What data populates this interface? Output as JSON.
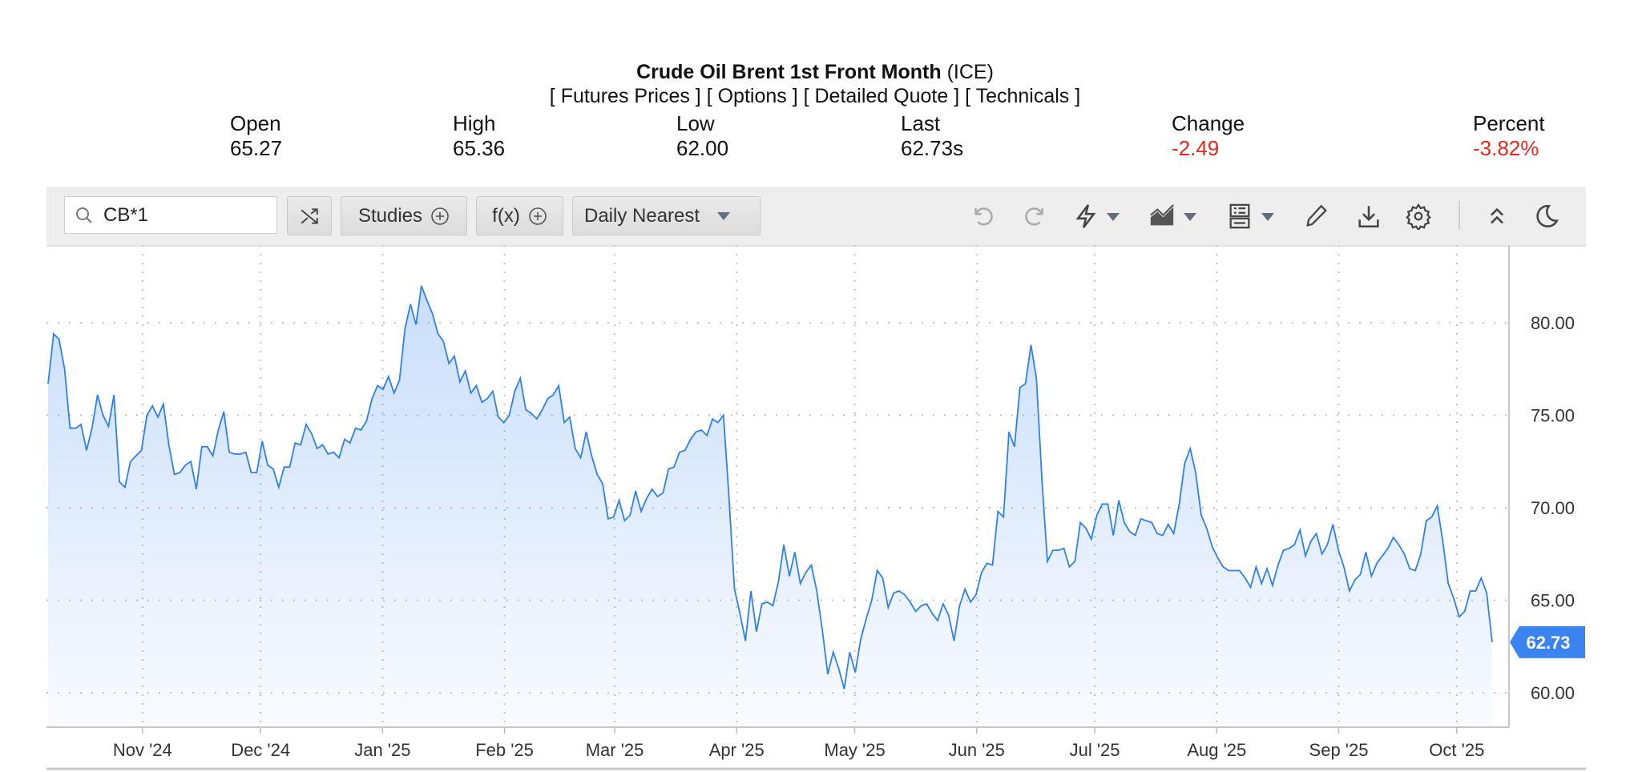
{
  "header": {
    "title": "Crude Oil Brent 1st Front Month",
    "exchange": "(ICE)",
    "links": [
      "[ Futures Prices ]",
      "[ Options ]",
      "[ Detailed Quote ]",
      "[ Technicals ]"
    ],
    "stats": [
      {
        "label": "Open",
        "value": "65.27",
        "negative": false
      },
      {
        "label": "High",
        "value": "65.36",
        "negative": false
      },
      {
        "label": "Low",
        "value": "62.00",
        "negative": false
      },
      {
        "label": "Last",
        "value": "62.73s",
        "negative": false
      },
      {
        "label": "Change",
        "value": "-2.49",
        "negative": true
      },
      {
        "label": "Percent",
        "value": "-3.82%",
        "negative": true
      }
    ]
  },
  "toolbar": {
    "symbol": "CB*1",
    "studies_label": "Studies",
    "fx_label": "f(x)",
    "period_label": "Daily Nearest",
    "icons": [
      "search-icon",
      "shuffle-icon",
      "plus-circle-icon",
      "undo-icon",
      "redo-icon",
      "lightning-icon",
      "area-chart-icon",
      "list-icon",
      "pencil-icon",
      "download-icon",
      "gear-icon",
      "chevron-up-double-icon",
      "moon-icon"
    ]
  },
  "colors": {
    "line": "#2f80ed",
    "negative": "#e8261c",
    "price_tag": "#3a84f0"
  },
  "chart_data": {
    "type": "area",
    "x_range": [
      "2024-10-08",
      "2025-10-10"
    ],
    "ylim": [
      57.5,
      83
    ],
    "y_ticks": [
      "60.00",
      "65.00",
      "70.00",
      "75.00",
      "80.00"
    ],
    "x_ticks": [
      {
        "date": "2024-11-01",
        "label": "Nov '24"
      },
      {
        "date": "2024-12-01",
        "label": "Dec '24"
      },
      {
        "date": "2025-01-01",
        "label": "Jan '25"
      },
      {
        "date": "2025-02-01",
        "label": "Feb '25"
      },
      {
        "date": "2025-03-01",
        "label": "Mar '25"
      },
      {
        "date": "2025-04-01",
        "label": "Apr '25"
      },
      {
        "date": "2025-05-01",
        "label": "May '25"
      },
      {
        "date": "2025-06-01",
        "label": "Jun '25"
      },
      {
        "date": "2025-07-01",
        "label": "Jul '25"
      },
      {
        "date": "2025-08-01",
        "label": "Aug '25"
      },
      {
        "date": "2025-09-01",
        "label": "Sep '25"
      },
      {
        "date": "2025-10-01",
        "label": "Oct '25"
      }
    ],
    "grid": true,
    "last_price_label": "62.73",
    "values": [
      76.7,
      79.4,
      79.1,
      77.5,
      74.3,
      74.3,
      74.5,
      73.1,
      74.3,
      76.1,
      75.0,
      74.4,
      76.1,
      71.4,
      71.1,
      72.5,
      72.8,
      73.1,
      75.0,
      75.5,
      74.9,
      75.6,
      73.4,
      71.8,
      71.9,
      72.3,
      72.5,
      71.0,
      73.3,
      73.3,
      72.8,
      74.2,
      75.2,
      73.0,
      72.9,
      72.9,
      73.0,
      71.9,
      71.9,
      73.6,
      72.3,
      72.1,
      71.1,
      72.2,
      72.2,
      73.5,
      73.4,
      74.5,
      74.0,
      73.2,
      73.4,
      72.9,
      73.0,
      72.7,
      73.7,
      73.5,
      74.3,
      74.2,
      74.7,
      75.9,
      76.6,
      76.4,
      77.1,
      76.2,
      76.9,
      79.7,
      81.0,
      79.9,
      82.0,
      81.2,
      80.5,
      79.4,
      79.0,
      77.8,
      78.2,
      76.8,
      77.4,
      76.2,
      76.6,
      75.7,
      75.9,
      76.3,
      74.9,
      74.6,
      75.0,
      76.3,
      77.0,
      75.3,
      75.1,
      74.8,
      75.3,
      75.9,
      76.1,
      76.6,
      74.6,
      74.9,
      73.2,
      72.7,
      74.1,
      72.8,
      71.8,
      71.3,
      69.4,
      69.5,
      70.4,
      69.3,
      69.6,
      70.9,
      69.8,
      70.5,
      71.0,
      70.6,
      70.8,
      72.1,
      72.2,
      73.0,
      73.1,
      73.7,
      74.1,
      74.2,
      73.9,
      74.8,
      74.6,
      75.0,
      70.6,
      65.6,
      64.3,
      62.8,
      65.5,
      63.3,
      64.8,
      64.9,
      64.7,
      66.0,
      68.0,
      66.3,
      67.6,
      65.9,
      66.5,
      66.9,
      65.5,
      63.4,
      61.0,
      62.2,
      61.3,
      60.2,
      62.2,
      61.1,
      62.9,
      64.0,
      65.0,
      66.6,
      66.2,
      64.6,
      65.4,
      65.5,
      65.3,
      64.9,
      64.4,
      64.7,
      64.8,
      64.3,
      63.9,
      64.8,
      64.2,
      62.8,
      64.7,
      65.6,
      64.9,
      65.3,
      66.5,
      67.0,
      66.9,
      69.8,
      69.5,
      74.1,
      73.3,
      76.5,
      76.7,
      78.8,
      77.0,
      71.5,
      67.1,
      67.7,
      67.7,
      67.8,
      66.8,
      67.1,
      69.2,
      68.9,
      68.3,
      69.6,
      70.2,
      70.2,
      68.5,
      70.4,
      69.2,
      68.7,
      68.5,
      69.4,
      69.3,
      69.2,
      68.6,
      68.5,
      69.1,
      68.6,
      70.2,
      72.4,
      73.2,
      71.9,
      69.6,
      68.9,
      67.9,
      67.3,
      66.8,
      66.6,
      66.6,
      66.6,
      66.2,
      65.7,
      66.8,
      65.9,
      66.7,
      65.8,
      66.9,
      67.7,
      67.8,
      68.0,
      68.8,
      67.4,
      68.2,
      68.6,
      67.5,
      68.0,
      69.1,
      67.7,
      66.8,
      65.5,
      66.1,
      66.4,
      67.6,
      66.3,
      67.0,
      67.4,
      67.8,
      68.4,
      68.0,
      67.5,
      66.7,
      66.6,
      67.5,
      69.3,
      69.5,
      70.1,
      68.2,
      65.9,
      65.1,
      64.1,
      64.4,
      65.5,
      65.5,
      66.2,
      65.4,
      62.73
    ]
  }
}
